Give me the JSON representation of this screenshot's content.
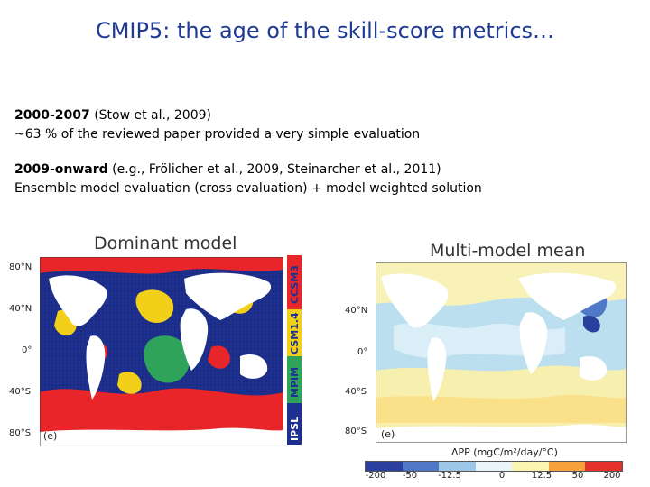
{
  "slide": {
    "title": "CMIP5: the age of the skill-score metrics…",
    "items": [
      {
        "head": "2000-2007",
        "head_rest": " (Stow et al., 2009)",
        "detail": "~63 % of the reviewed paper provided a very simple evaluation"
      },
      {
        "head": "2009-onward",
        "head_rest": " (e.g., Frölicher et al., 2009, Steinarcher et al., 2011)",
        "detail": "Ensemble model evaluation (cross evaluation) +  model weighted solution"
      }
    ]
  },
  "left_map": {
    "title": "Dominant model",
    "lat_labels": [
      "80°N",
      "40°N",
      "0°",
      "40°S",
      "80°S"
    ],
    "panel_tag": "(e)",
    "legend": [
      {
        "label": "CCSM3",
        "color": "#e8262a"
      },
      {
        "label": "CSM1.4",
        "color": "#f2d019"
      },
      {
        "label": "MPIM",
        "color": "#2fa35a"
      },
      {
        "label": "IPSL",
        "color": "#1d2f8f"
      }
    ]
  },
  "right_map": {
    "title": "Multi-model mean",
    "lat_labels": [
      "40°N",
      "0°",
      "40°S",
      "80°S"
    ],
    "panel_tag": "(e)",
    "colorbar_title": "ΔPP (mgC/m²/day/°C)",
    "colorbar_ticks": [
      "-200",
      "-50",
      "-12.5",
      "0",
      "12.5",
      "50",
      "200"
    ],
    "colorbar_colors": [
      "#2b3f9e",
      "#4f79c6",
      "#9cc7e6",
      "#e9f5f9",
      "#fbf3b0",
      "#f6a13c",
      "#e4312b"
    ]
  }
}
